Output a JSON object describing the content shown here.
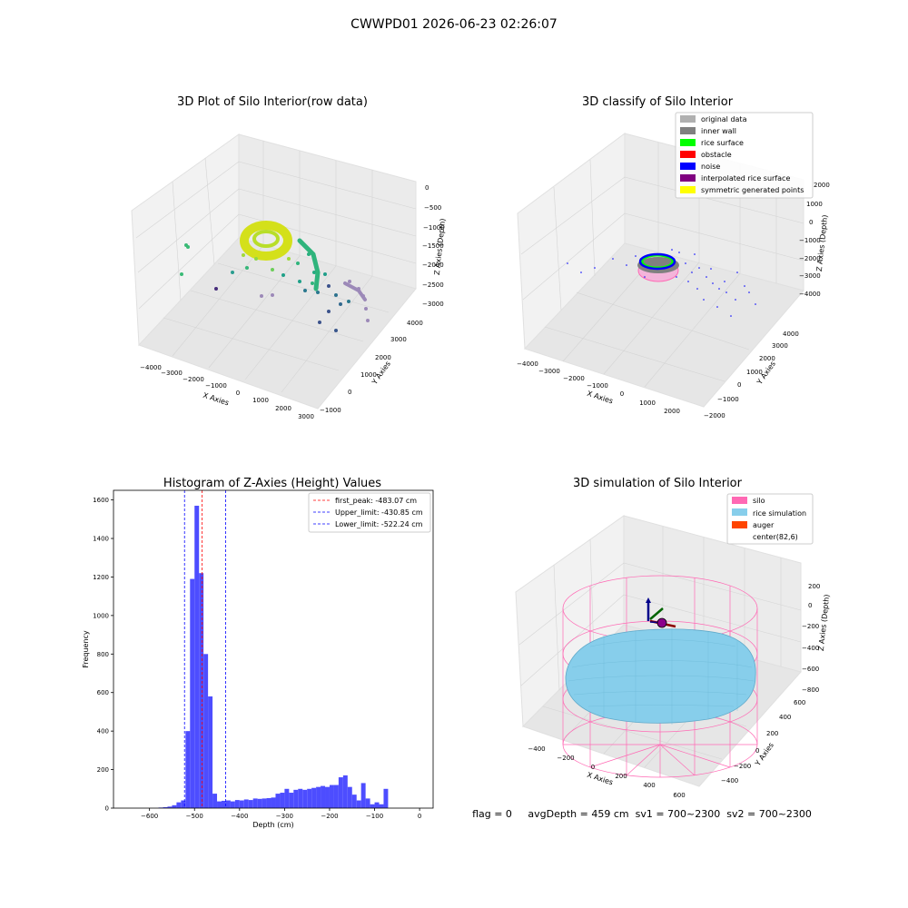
{
  "suptitle": "CWWPD01 2026-06-23 02:26:07",
  "status_line": "flag = 0     avgDepth = 459 cm  sv1 = 700~2300  sv2 = 700~2300",
  "colors": {
    "hist_bar": "#4d4dff",
    "peak_line": "#ff0000",
    "limit_line": "#0000ff",
    "pane": "#f2f2f2",
    "grid": "#d0d0d0",
    "silo": "#ff69b4",
    "rice_sim": "#87ceeb",
    "auger": "#ff4500"
  },
  "chart_data": [
    {
      "type": "scatter",
      "title": "3D Plot of Silo Interior(row data)",
      "xlabel": "X Axies",
      "ylabel": "Y Axies",
      "zlabel": "Z Axies (Depth)",
      "x_ticks": [
        "−4000",
        "−3000",
        "−2000",
        "−1000",
        "0",
        "1000",
        "2000",
        "3000"
      ],
      "y_ticks": [
        "−1000",
        "0",
        "1000",
        "2000",
        "3000",
        "4000"
      ],
      "z_ticks": [
        "0",
        "−500",
        "−1000",
        "−1500",
        "−2000",
        "−2500",
        "−3000"
      ],
      "colormap": "viridis (colored by depth)"
    },
    {
      "type": "scatter",
      "title": "3D classify of Silo Interior",
      "xlabel": "X Axies",
      "ylabel": "Y Axies",
      "zlabel": "Z Axies (Depth)",
      "x_ticks": [
        "−4000",
        "−3000",
        "−2000",
        "−1000",
        "0",
        "1000",
        "2000"
      ],
      "y_ticks": [
        "−2000",
        "−1000",
        "0",
        "1000",
        "2000",
        "3000",
        "4000"
      ],
      "z_ticks": [
        "2000",
        "1000",
        "0",
        "−1000",
        "−2000",
        "−3000",
        "−4000"
      ],
      "legend": [
        {
          "label": "original data",
          "color": "#b0b0b0"
        },
        {
          "label": "inner wall",
          "color": "#808080"
        },
        {
          "label": "rice surface",
          "color": "#00ff00"
        },
        {
          "label": "obstacle",
          "color": "#ff0000"
        },
        {
          "label": "noise",
          "color": "#0000ff"
        },
        {
          "label": "interpolated rice surface",
          "color": "#800080"
        },
        {
          "label": "symmetric generated points",
          "color": "#ffff00"
        }
      ]
    },
    {
      "type": "bar",
      "title": "Histogram of Z-Axies (Height) Values",
      "xlabel": "Depth (cm)",
      "ylabel": "Frequency",
      "xlim": [
        -680,
        30
      ],
      "ylim": [
        0,
        1650
      ],
      "x_ticks": [
        -600,
        -500,
        -400,
        -300,
        -200,
        -100,
        0
      ],
      "y_ticks": [
        0,
        200,
        400,
        600,
        800,
        1000,
        1200,
        1400,
        1600
      ],
      "bin_width": 10,
      "bins": [
        {
          "x0": -580,
          "value": 3
        },
        {
          "x0": -570,
          "value": 5
        },
        {
          "x0": -560,
          "value": 8
        },
        {
          "x0": -550,
          "value": 15
        },
        {
          "x0": -540,
          "value": 30
        },
        {
          "x0": -530,
          "value": 40
        },
        {
          "x0": -520,
          "value": 400
        },
        {
          "x0": -510,
          "value": 1190
        },
        {
          "x0": -500,
          "value": 1570
        },
        {
          "x0": -490,
          "value": 1220
        },
        {
          "x0": -480,
          "value": 800
        },
        {
          "x0": -470,
          "value": 580
        },
        {
          "x0": -460,
          "value": 75
        },
        {
          "x0": -450,
          "value": 35
        },
        {
          "x0": -440,
          "value": 38
        },
        {
          "x0": -430,
          "value": 40
        },
        {
          "x0": -420,
          "value": 35
        },
        {
          "x0": -410,
          "value": 42
        },
        {
          "x0": -400,
          "value": 40
        },
        {
          "x0": -390,
          "value": 45
        },
        {
          "x0": -380,
          "value": 42
        },
        {
          "x0": -370,
          "value": 50
        },
        {
          "x0": -360,
          "value": 48
        },
        {
          "x0": -350,
          "value": 50
        },
        {
          "x0": -340,
          "value": 52
        },
        {
          "x0": -330,
          "value": 55
        },
        {
          "x0": -320,
          "value": 75
        },
        {
          "x0": -310,
          "value": 80
        },
        {
          "x0": -300,
          "value": 100
        },
        {
          "x0": -290,
          "value": 80
        },
        {
          "x0": -280,
          "value": 95
        },
        {
          "x0": -270,
          "value": 100
        },
        {
          "x0": -260,
          "value": 95
        },
        {
          "x0": -250,
          "value": 100
        },
        {
          "x0": -240,
          "value": 105
        },
        {
          "x0": -230,
          "value": 110
        },
        {
          "x0": -220,
          "value": 115
        },
        {
          "x0": -210,
          "value": 110
        },
        {
          "x0": -200,
          "value": 120
        },
        {
          "x0": -190,
          "value": 120
        },
        {
          "x0": -180,
          "value": 160
        },
        {
          "x0": -170,
          "value": 170
        },
        {
          "x0": -160,
          "value": 110
        },
        {
          "x0": -150,
          "value": 70
        },
        {
          "x0": -140,
          "value": 40
        },
        {
          "x0": -130,
          "value": 130
        },
        {
          "x0": -120,
          "value": 50
        },
        {
          "x0": -110,
          "value": 20
        },
        {
          "x0": -100,
          "value": 30
        },
        {
          "x0": -90,
          "value": 20
        },
        {
          "x0": -80,
          "value": 100
        }
      ],
      "vlines": [
        {
          "x": -483.07,
          "label": "first_peak: -483.07 cm",
          "color": "#ff0000"
        },
        {
          "x": -430.85,
          "label": "Upper_limit: -430.85 cm",
          "color": "#0000ff"
        },
        {
          "x": -522.24,
          "label": "Lower_limit: -522.24 cm",
          "color": "#0000ff"
        }
      ]
    },
    {
      "type": "scatter",
      "title": "3D simulation of Silo Interior",
      "xlabel": "X Axies",
      "ylabel": "Y Axies",
      "zlabel": "Z Axies (Depth)",
      "x_ticks": [
        "−400",
        "−200",
        "0",
        "200",
        "400",
        "600"
      ],
      "y_ticks": [
        "−400",
        "−200",
        "0",
        "200",
        "400",
        "600"
      ],
      "z_ticks": [
        "200",
        "0",
        "−200",
        "−400",
        "−600",
        "−800"
      ],
      "legend": [
        {
          "label": "silo",
          "color": "#ff69b4"
        },
        {
          "label": "rice simulation",
          "color": "#87ceeb"
        },
        {
          "label": "auger",
          "color": "#ff4500"
        },
        {
          "label": "center(82,6)",
          "color": ""
        }
      ]
    }
  ]
}
